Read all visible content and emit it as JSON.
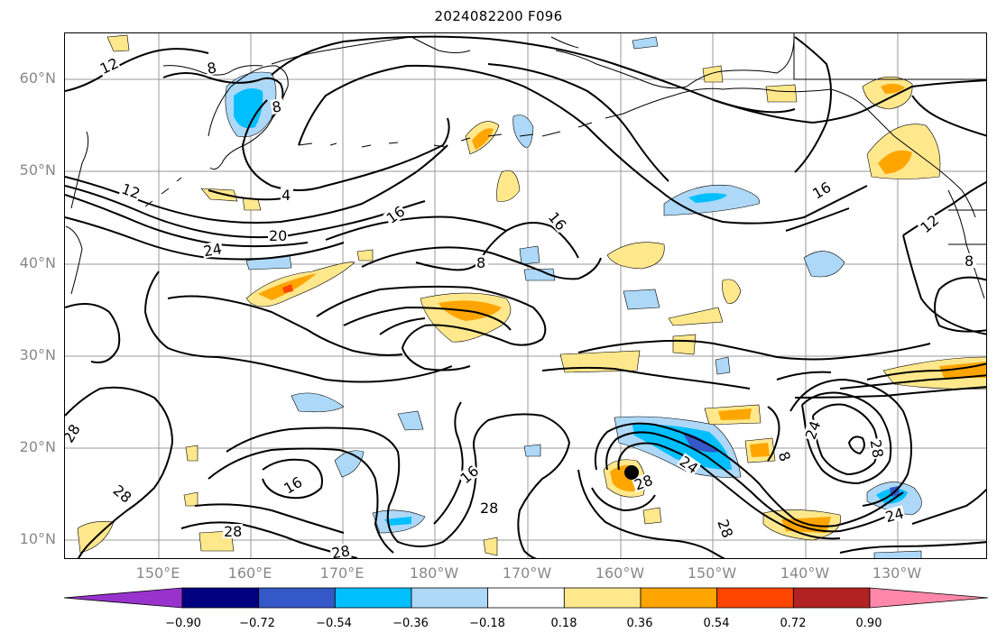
{
  "title": "2024082200 F096",
  "lat_labels": [
    "60°N",
    "50°N",
    "40°N",
    "30°N",
    "20°N",
    "10°N"
  ],
  "lon_labels": [
    "150°E",
    "160°E",
    "170°E",
    "180°W",
    "170°W",
    "160°W",
    "150°W",
    "140°W",
    "130°W"
  ],
  "colorbar": {
    "labels": [
      "−0.90",
      "−0.72",
      "−0.54",
      "−0.36",
      "−0.18",
      "0.18",
      "0.36",
      "0.54",
      "0.72",
      "0.90"
    ],
    "colors": [
      "#9932cc",
      "#000080",
      "#3558c8",
      "#00bfff",
      "#add8f7",
      "#ffffff",
      "#ffe88c",
      "#ffa500",
      "#ff4500",
      "#b22222",
      "#ff88aa"
    ]
  },
  "contour_labels": [
    "12",
    "8",
    "8",
    "4",
    "12",
    "20",
    "24",
    "16",
    "16",
    "8",
    "16",
    "12",
    "8",
    "28",
    "28",
    "16",
    "16",
    "28",
    "28",
    "28",
    "24",
    "8",
    "24",
    "28",
    "28",
    "28",
    "24"
  ],
  "storm_marker": "storm-center"
}
